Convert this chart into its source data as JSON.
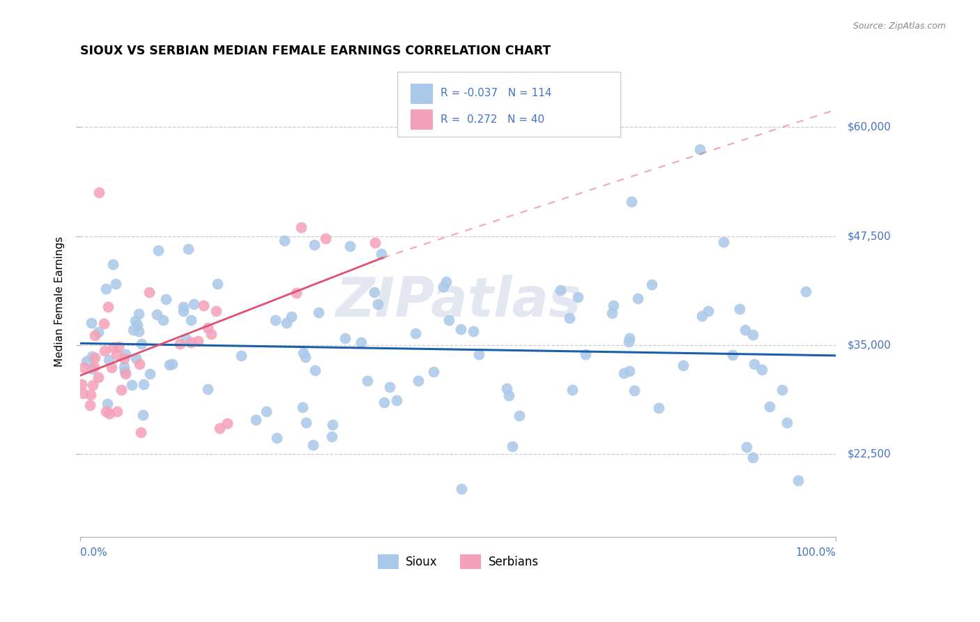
{
  "title": "SIOUX VS SERBIAN MEDIAN FEMALE EARNINGS CORRELATION CHART",
  "source_text": "Source: ZipAtlas.com",
  "ylabel": "Median Female Earnings",
  "xlim": [
    0.0,
    100.0
  ],
  "ylim": [
    13000,
    67000
  ],
  "yticks": [
    22500,
    35000,
    47500,
    60000
  ],
  "ytick_labels": [
    "$22,500",
    "$35,000",
    "$47,500",
    "$60,000"
  ],
  "xtick_labels": [
    "0.0%",
    "100.0%"
  ],
  "grid_color": "#c8c8c8",
  "background_color": "#ffffff",
  "sioux_color": "#aac8e8",
  "serbian_color": "#f4a0b8",
  "sioux_line_color": "#1a5fa8",
  "serbian_line_color": "#e05070",
  "legend_sioux_color": "#aac8e8",
  "legend_serbian_color": "#f4a0b8",
  "legend_sioux_label": "Sioux",
  "legend_serbian_label": "Serbians",
  "sioux_R": -0.037,
  "sioux_N": 114,
  "serbian_R": 0.272,
  "serbian_N": 40,
  "label_color": "#4472c4",
  "title_color": "#000000",
  "watermark_color": "#d0d8e8",
  "sioux_trend_x0": 0,
  "sioux_trend_x1": 100,
  "sioux_trend_y0": 35200,
  "sioux_trend_y1": 33800,
  "serbian_solid_x0": 0,
  "serbian_solid_x1": 40,
  "serbian_solid_y0": 31500,
  "serbian_solid_y1": 45000,
  "serbian_dash_x0": 40,
  "serbian_dash_x1": 100,
  "serbian_dash_y0": 45000,
  "serbian_dash_y1": 62000
}
